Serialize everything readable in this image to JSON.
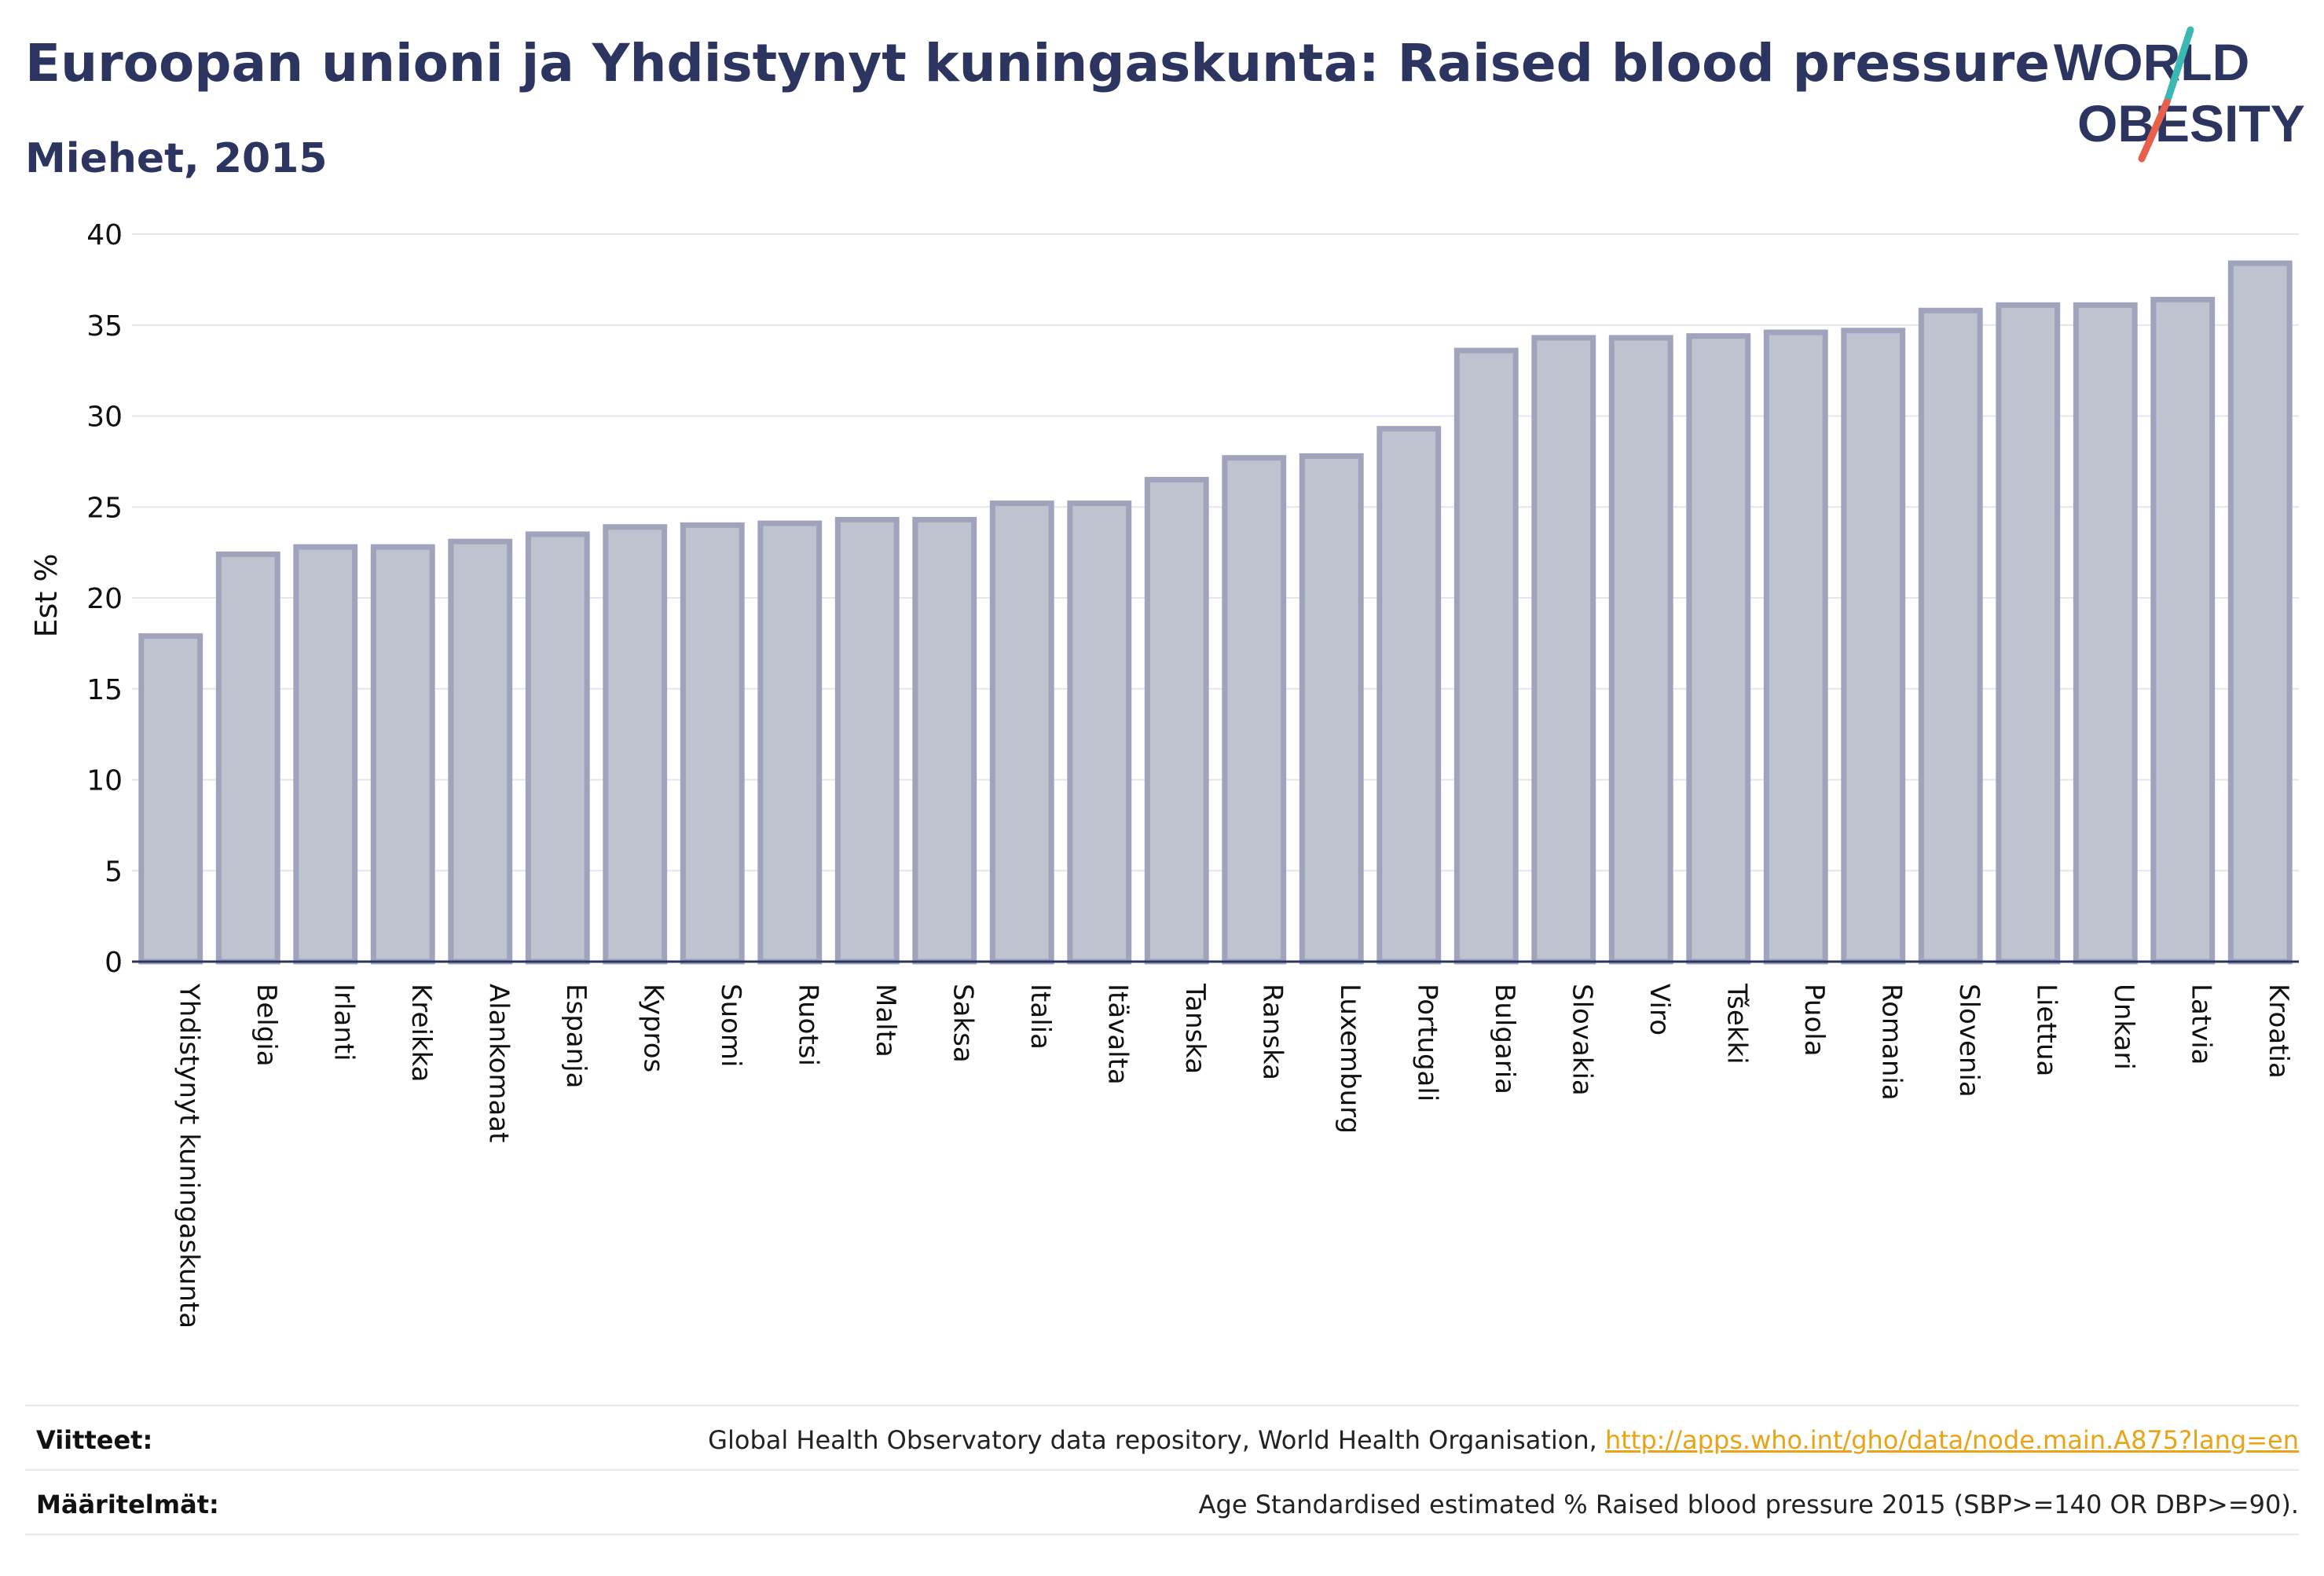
{
  "header": {
    "title": "Euroopan unioni ja Yhdistynyt kuningaskunta: Raised blood pressure",
    "subtitle": "Miehet, 2015"
  },
  "logo": {
    "line1": "WORLD",
    "line2": "OBESITY",
    "colors": {
      "text": "#2b3560",
      "slash_top": "#3cb8b2",
      "slash_bottom": "#e8604c"
    }
  },
  "chart_data": {
    "type": "bar",
    "ylabel": "Est %",
    "ylim": [
      0,
      40
    ],
    "yticks": [
      0,
      5,
      10,
      15,
      20,
      25,
      30,
      35,
      40
    ],
    "grid": true,
    "colors": {
      "bar_fill": "#bfc2cf",
      "bar_stroke": "#9fa3bb",
      "axis": "#2b3560",
      "grid": "#e4e6ec"
    },
    "categories": [
      "Yhdistynyt kuningaskunta",
      "Belgia",
      "Irlanti",
      "Kreikka",
      "Alankomaat",
      "Espanja",
      "Kypros",
      "Suomi",
      "Ruotsi",
      "Malta",
      "Saksa",
      "Italia",
      "Itävalta",
      "Tanska",
      "Ranska",
      "Luxemburg",
      "Portugali",
      "Bulgaria",
      "Slovakia",
      "Viro",
      "Tšekki",
      "Puola",
      "Romania",
      "Slovenia",
      "Liettua",
      "Unkari",
      "Latvia",
      "Kroatia"
    ],
    "values": [
      17.9,
      22.4,
      22.8,
      22.8,
      23.1,
      23.5,
      23.9,
      24.0,
      24.1,
      24.3,
      24.3,
      25.2,
      25.2,
      26.5,
      27.7,
      27.8,
      29.3,
      33.6,
      34.3,
      34.3,
      34.4,
      34.6,
      34.7,
      35.8,
      36.1,
      36.1,
      36.4,
      38.4
    ]
  },
  "footer": {
    "references_label": "Viitteet:",
    "references_text": "Global Health Observatory data repository, World Health Organisation, ",
    "references_link": "http://apps.who.int/gho/data/node.main.A875?lang=en",
    "definitions_label": "Määritelmät:",
    "definitions_text": "Age Standardised estimated % Raised blood pressure 2015 (SBP>=140 OR DBP>=90)."
  }
}
